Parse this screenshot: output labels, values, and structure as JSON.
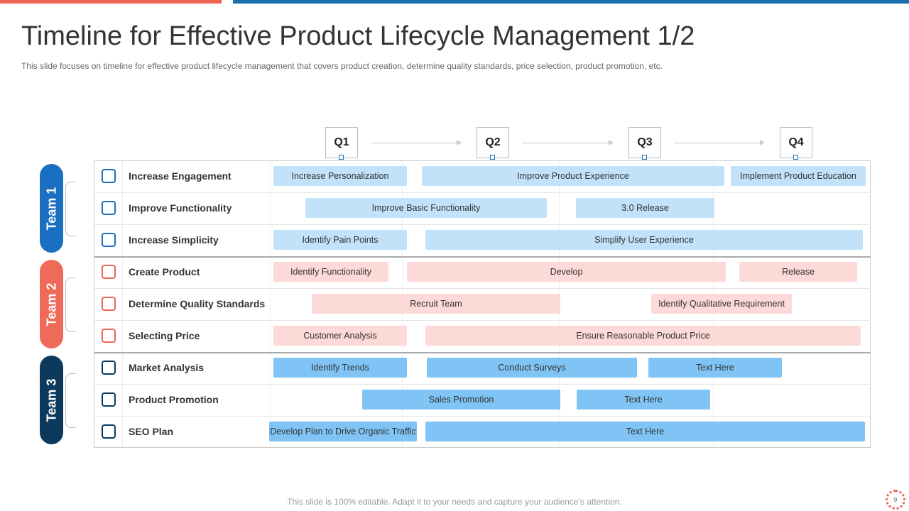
{
  "header": {
    "title": "Timeline for Effective Product Lifecycle Management 1/2",
    "subtitle": "This slide focuses on timeline for effective product lifecycle management that covers product creation, determine quality standards, price selection, product promotion, etc."
  },
  "quarters": [
    "Q1",
    "Q2",
    "Q3",
    "Q4"
  ],
  "teams": [
    {
      "name": "Team 1",
      "rows": [
        {
          "name": "Increase Engagement",
          "tasks": [
            "Increase Personalization",
            "Improve Product Experience",
            "Implement Product Education"
          ]
        },
        {
          "name": "Improve Functionality",
          "tasks": [
            "Improve Basic Functionality",
            "3.0 Release"
          ]
        },
        {
          "name": "Increase Simplicity",
          "tasks": [
            "Identify Pain Points",
            "Simplify User Experience"
          ]
        }
      ]
    },
    {
      "name": "Team 2",
      "rows": [
        {
          "name": "Create Product",
          "tasks": [
            "Identify Functionality",
            "Develop",
            "Release"
          ]
        },
        {
          "name": "Determine Quality Standards",
          "tasks": [
            "Recruit Team",
            "Identify Qualitative Requirement"
          ]
        },
        {
          "name": "Selecting Price",
          "tasks": [
            "Customer Analysis",
            "Ensure Reasonable Product Price"
          ]
        }
      ]
    },
    {
      "name": "Team 3",
      "rows": [
        {
          "name": "Market Analysis",
          "tasks": [
            "Identify Trends",
            "Conduct Surveys",
            "Text Here"
          ]
        },
        {
          "name": "Product Promotion",
          "tasks": [
            "Sales Promotion",
            "Text Here"
          ]
        },
        {
          "name": "SEO Plan",
          "tasks": [
            "Develop Plan to Drive Organic Traffic",
            "Text Here"
          ]
        }
      ]
    }
  ],
  "footer": {
    "note": "This slide is 100% editable. Adapt it to your needs and capture your audience’s attention.",
    "page": "9"
  }
}
